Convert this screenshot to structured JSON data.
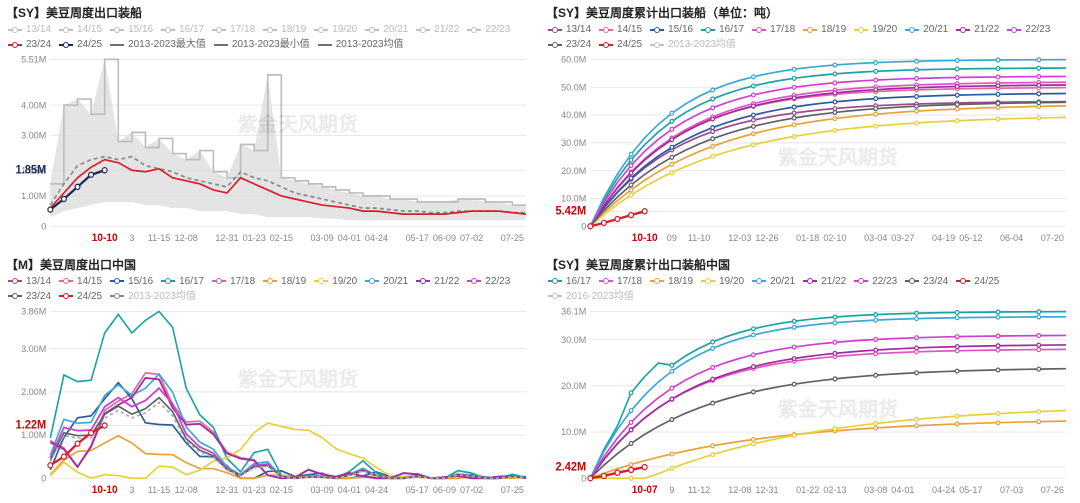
{
  "watermark_text": "紫金天风期货",
  "x_axis": {
    "labels": [
      "3",
      "11-15",
      "12-08",
      "12-31",
      "01-23",
      "02-15",
      "03-09",
      "04-01",
      "04-24",
      "05-17",
      "06-09",
      "07-02",
      "07-25"
    ],
    "highlight_label": "10-10",
    "labels_p2": [
      "09",
      "11-10",
      "12-03",
      "12-26",
      "01-18",
      "02-10",
      "03-04",
      "03-27",
      "04-19",
      "05-12",
      "06-04",
      "07-20"
    ],
    "highlight_label_p2": "10-10",
    "labels_p4": [
      "9",
      "11-12",
      "12-08",
      "12-31",
      "01-22",
      "02-13",
      "03-08",
      "04-01",
      "04-24",
      "05-17",
      "07-03",
      "07-26"
    ],
    "highlight_label_p4": "10-07"
  },
  "panels": [
    {
      "id": "p1",
      "title": "【SY】美豆周度出口装船",
      "legend": [
        {
          "label": "13/14",
          "color": "#c0c0c0",
          "muted": true
        },
        {
          "label": "14/15",
          "color": "#c0c0c0",
          "muted": true
        },
        {
          "label": "15/16",
          "color": "#c0c0c0",
          "muted": true
        },
        {
          "label": "16/17",
          "color": "#c0c0c0",
          "muted": true
        },
        {
          "label": "17/18",
          "color": "#c0c0c0",
          "muted": true
        },
        {
          "label": "18/19",
          "color": "#c0c0c0",
          "muted": true
        },
        {
          "label": "19/20",
          "color": "#c0c0c0",
          "muted": true
        },
        {
          "label": "20/21",
          "color": "#c0c0c0",
          "muted": true
        },
        {
          "label": "21/22",
          "color": "#c0c0c0",
          "muted": true
        },
        {
          "label": "22/23",
          "color": "#c0c0c0",
          "muted": true
        },
        {
          "label": "23/24",
          "color": "#d81e2c"
        },
        {
          "label": "24/25",
          "color": "#1a2a5a"
        },
        {
          "label": "2013-2023最大值",
          "color": "#707070",
          "solid": true
        },
        {
          "label": "2013-2023最小值",
          "color": "#707070",
          "solid": true
        },
        {
          "label": "2013-2023均值",
          "color": "#707070",
          "solid": true
        }
      ],
      "y": {
        "min": 0,
        "max": 5.51,
        "ticks": [
          {
            "v": 5.51,
            "t": "5.51M"
          },
          {
            "v": 4.0,
            "t": "4.00M"
          },
          {
            "v": 3.0,
            "t": "3.00M"
          },
          {
            "v": 1.85,
            "t": "1.85M"
          },
          {
            "v": 1.0,
            "t": "1.00M"
          },
          {
            "v": 0,
            "t": "0"
          }
        ]
      },
      "current_marker_label": "1.85M",
      "band_max": [
        1.4,
        4.0,
        4.2,
        3.7,
        5.51,
        2.8,
        3.1,
        2.6,
        2.9,
        2.4,
        2.2,
        2.5,
        1.8,
        1.6,
        2.7,
        2.5,
        5.0,
        1.6,
        1.5,
        1.4,
        1.3,
        1.2,
        1.1,
        1.0,
        1.0,
        0.9,
        0.9,
        0.8,
        0.8,
        0.8,
        0.9,
        0.9,
        0.8,
        0.8,
        0.7,
        0.7
      ],
      "band_min": [
        0.3,
        0.5,
        0.6,
        0.7,
        0.8,
        0.8,
        0.8,
        0.7,
        0.7,
        0.6,
        0.6,
        0.5,
        0.5,
        0.5,
        0.4,
        0.4,
        0.3,
        0.3,
        0.3,
        0.3,
        0.25,
        0.25,
        0.2,
        0.2,
        0.2,
        0.2,
        0.2,
        0.2,
        0.2,
        0.2,
        0.2,
        0.2,
        0.2,
        0.2,
        0.2,
        0.2
      ],
      "series": [
        {
          "name": "mean",
          "color": "#888888",
          "dash": "4,3",
          "values": [
            0.7,
            1.4,
            2.0,
            2.2,
            2.3,
            2.2,
            2.3,
            2.0,
            1.9,
            1.8,
            1.6,
            1.5,
            1.4,
            1.3,
            1.8,
            1.6,
            1.5,
            1.3,
            1.1,
            1.0,
            0.9,
            0.8,
            0.7,
            0.6,
            0.6,
            0.55,
            0.5,
            0.5,
            0.45,
            0.45,
            0.5,
            0.5,
            0.5,
            0.5,
            0.45,
            0.45
          ]
        },
        {
          "name": "23/24",
          "color": "#d81e2c",
          "values": [
            0.6,
            1.1,
            1.6,
            1.95,
            2.2,
            2.1,
            1.85,
            1.8,
            1.9,
            1.6,
            1.5,
            1.4,
            1.2,
            1.1,
            1.6,
            1.4,
            1.2,
            1.0,
            0.9,
            0.8,
            0.7,
            0.65,
            0.6,
            0.5,
            0.5,
            0.45,
            0.4,
            0.4,
            0.4,
            0.4,
            0.45,
            0.5,
            0.5,
            0.5,
            0.45,
            0.4
          ]
        },
        {
          "name": "24/25",
          "color": "#1a2a5a",
          "values": [
            0.55,
            0.9,
            1.3,
            1.7,
            1.85
          ],
          "short": true
        }
      ]
    },
    {
      "id": "p2",
      "title": "【SY】美豆周度累计出口装船（单位：吨）",
      "legend": [
        {
          "label": "13/14",
          "color": "#9b4a8a"
        },
        {
          "label": "14/15",
          "color": "#e06aa0"
        },
        {
          "label": "15/16",
          "color": "#2a5aa0"
        },
        {
          "label": "16/17",
          "color": "#1ba3a3"
        },
        {
          "label": "17/18",
          "color": "#e055c0"
        },
        {
          "label": "18/19",
          "color": "#e8a23a"
        },
        {
          "label": "19/20",
          "color": "#e8d03a"
        },
        {
          "label": "20/21",
          "color": "#3aa8d8"
        },
        {
          "label": "21/22",
          "color": "#a02aa0"
        },
        {
          "label": "22/23",
          "color": "#d040d0"
        },
        {
          "label": "23/24",
          "color": "#60606a"
        },
        {
          "label": "24/25",
          "color": "#d81e2c"
        },
        {
          "label": "2013-2023均值",
          "color": "#c0c0c0",
          "muted": true
        }
      ],
      "y": {
        "min": 0,
        "max": 60,
        "ticks": [
          {
            "v": 60,
            "t": "60.0M"
          },
          {
            "v": 50,
            "t": "50.0M"
          },
          {
            "v": 40,
            "t": "40.0M"
          },
          {
            "v": 30,
            "t": "30.0M"
          },
          {
            "v": 20,
            "t": "20.0M"
          },
          {
            "v": 10,
            "t": "10.0M"
          },
          {
            "v": 5.42,
            "t": "5.42M"
          },
          {
            "v": 0,
            "t": "0"
          }
        ]
      },
      "current_marker_label": "5.42M",
      "curves": {
        "13/14": {
          "color": "#9b4a8a",
          "final": 45,
          "shape": 1.0
        },
        "14/15": {
          "color": "#e06aa0",
          "final": 50,
          "shape": 1.05
        },
        "15/16": {
          "color": "#2a5aa0",
          "final": 48,
          "shape": 0.95
        },
        "16/17": {
          "color": "#1ba3a3",
          "final": 57,
          "shape": 1.15
        },
        "17/18": {
          "color": "#e055c0",
          "final": 52,
          "shape": 1.0
        },
        "18/19": {
          "color": "#e8a23a",
          "final": 44,
          "shape": 0.75
        },
        "19/20": {
          "color": "#e8d03a",
          "final": 40,
          "shape": 0.7
        },
        "20/21": {
          "color": "#3aa8d8",
          "final": 60,
          "shape": 1.2
        },
        "21/22": {
          "color": "#a02aa0",
          "final": 51,
          "shape": 1.0
        },
        "22/23": {
          "color": "#d040d0",
          "final": 54,
          "shape": 1.1
        },
        "23/24": {
          "color": "#60606a",
          "final": 45,
          "shape": 0.85
        }
      },
      "current_series": {
        "name": "24/25",
        "color": "#d81e2c",
        "values": [
          0,
          1.2,
          2.6,
          4.0,
          5.42
        ]
      }
    },
    {
      "id": "p3",
      "title": "【M】美豆周度出口中国",
      "legend": [
        {
          "label": "13/14",
          "color": "#9b4a8a"
        },
        {
          "label": "14/15",
          "color": "#e06aa0"
        },
        {
          "label": "15/16",
          "color": "#2a5aa0"
        },
        {
          "label": "16/17",
          "color": "#1ba3a3"
        },
        {
          "label": "17/18",
          "color": "#e055c0"
        },
        {
          "label": "18/19",
          "color": "#e8a23a"
        },
        {
          "label": "19/20",
          "color": "#e8d03a"
        },
        {
          "label": "20/21",
          "color": "#3aa8d8"
        },
        {
          "label": "21/22",
          "color": "#a02aa0"
        },
        {
          "label": "22/23",
          "color": "#d040d0"
        },
        {
          "label": "23/24",
          "color": "#60606a"
        },
        {
          "label": "24/25",
          "color": "#d81e2c"
        },
        {
          "label": "2013-2023均值",
          "color": "#888888",
          "muted": true
        }
      ],
      "y": {
        "min": 0,
        "max": 3.86,
        "ticks": [
          {
            "v": 3.86,
            "t": "3.86M"
          },
          {
            "v": 3.0,
            "t": "3.00M"
          },
          {
            "v": 2.0,
            "t": "2.00M"
          },
          {
            "v": 1.22,
            "t": "1.22M"
          },
          {
            "v": 1.0,
            "t": "1.00M"
          },
          {
            "v": 0,
            "t": "0"
          }
        ]
      },
      "current_marker_label": "1.22M",
      "series_profiles": {
        "13/14": {
          "peak": 1.9,
          "phase": 0
        },
        "14/15": {
          "peak": 2.1,
          "phase": 1
        },
        "15/16": {
          "peak": 1.8,
          "phase": -1
        },
        "16/17": {
          "peak": 3.86,
          "phase": 0,
          "color": "#1ba3a3"
        },
        "17/18": {
          "peak": 2.0,
          "phase": 1
        },
        "18/19": {
          "peak": 0.8,
          "phase": -1
        },
        "19/20": {
          "peak": 1.2,
          "phase": 0,
          "late": true
        },
        "20/21": {
          "peak": 2.2,
          "phase": 0
        },
        "21/22": {
          "peak": 2.0,
          "phase": 1
        },
        "22/23": {
          "peak": 1.9,
          "phase": 0
        },
        "23/24": {
          "peak": 1.7,
          "phase": 0
        },
        "mean": {
          "peak": 1.6,
          "phase": 0,
          "color": "#aaaaaa",
          "dash": "3,3"
        },
        "24/25": {
          "raw": [
            0.3,
            0.5,
            0.8,
            1.05,
            1.22
          ],
          "color": "#d81e2c",
          "thick": true
        }
      }
    },
    {
      "id": "p4",
      "title": "【SY】美豆周度累计出口装船中国",
      "legend": [
        {
          "label": "16/17",
          "color": "#1ba3a3"
        },
        {
          "label": "17/18",
          "color": "#e055c0"
        },
        {
          "label": "18/19",
          "color": "#e8a23a"
        },
        {
          "label": "19/20",
          "color": "#e8d03a"
        },
        {
          "label": "20/21",
          "color": "#3aa8d8"
        },
        {
          "label": "21/22",
          "color": "#a02aa0"
        },
        {
          "label": "22/23",
          "color": "#d040d0"
        },
        {
          "label": "23/24",
          "color": "#60606a"
        },
        {
          "label": "24/25",
          "color": "#d81e2c"
        },
        {
          "label": "2016-2023均值",
          "color": "#c0c0c0",
          "muted": true
        }
      ],
      "y": {
        "min": 0,
        "max": 36.1,
        "ticks": [
          {
            "v": 36.1,
            "t": "36.1M"
          },
          {
            "v": 30,
            "t": "30.0M"
          },
          {
            "v": 20,
            "t": "20.0M"
          },
          {
            "v": 10,
            "t": "10.0M"
          },
          {
            "v": 2.42,
            "t": "2.42M"
          },
          {
            "v": 0,
            "t": "0"
          }
        ]
      },
      "current_marker_label": "2.42M",
      "curves": {
        "16/17": {
          "color": "#1ba3a3",
          "final": 36.1,
          "shape": 1.2,
          "bump": true
        },
        "17/18": {
          "color": "#e055c0",
          "final": 28,
          "shape": 1.0
        },
        "18/19": {
          "color": "#e8a23a",
          "final": 13,
          "shape": 0.55
        },
        "19/20": {
          "color": "#e8d03a",
          "final": 16,
          "shape": 0.45,
          "late": true
        },
        "20/21": {
          "color": "#3aa8d8",
          "final": 35,
          "shape": 1.15
        },
        "21/22": {
          "color": "#a02aa0",
          "final": 29,
          "shape": 0.95
        },
        "22/23": {
          "color": "#d040d0",
          "final": 31,
          "shape": 1.05
        },
        "23/24": {
          "color": "#60606a",
          "final": 24,
          "shape": 0.8
        }
      },
      "current_series": {
        "name": "24/25",
        "color": "#d81e2c",
        "values": [
          0,
          0.5,
          1.2,
          1.8,
          2.42
        ]
      }
    }
  ]
}
